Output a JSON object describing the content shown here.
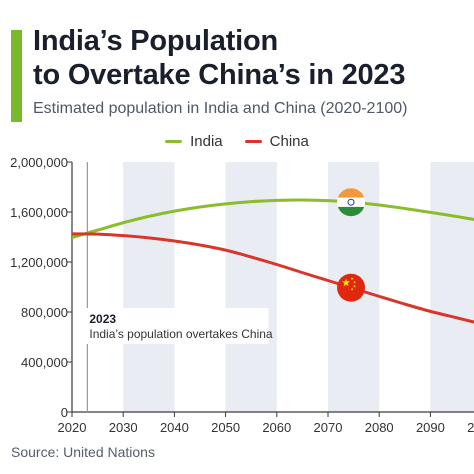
{
  "header": {
    "title_line1": "India’s Population",
    "title_line2": "to Overtake China’s in 2023",
    "subtitle": "Estimated population in India and China (2020-2100)"
  },
  "source": "Source: United Nations",
  "colors": {
    "accent": "#7ab929",
    "india": "#8bbd2b",
    "china": "#d8362a",
    "band": "#e9ecf2",
    "axis": "#3a3a3a",
    "marker": "#8e9aad"
  },
  "chart_data": {
    "type": "line",
    "x_unit": "year",
    "y_unit": "thousands",
    "xlim": [
      2020,
      2100
    ],
    "ylim": [
      0,
      2000000
    ],
    "x_ticks": [
      2020,
      2030,
      2040,
      2050,
      2060,
      2070,
      2080,
      2090
    ],
    "x_tick_labels": [
      "2020",
      "2030",
      "2040",
      "2050",
      "2060",
      "2070",
      "2080",
      "2090"
    ],
    "y_ticks": [
      0,
      400000,
      800000,
      1200000,
      1600000,
      2000000
    ],
    "y_tick_labels": [
      "0",
      "400,000",
      "800,000",
      "1,200,000",
      "1,600,000",
      "2,000,000"
    ],
    "legend_position": "top-center",
    "grid": false,
    "series": [
      {
        "name": "India",
        "color": "#8bbd2b",
        "icon": "india-flag-icon",
        "x": [
          2020,
          2025,
          2030,
          2035,
          2040,
          2045,
          2050,
          2055,
          2060,
          2065,
          2070,
          2075,
          2080,
          2085,
          2090,
          2095,
          2100
        ],
        "y": [
          1396000,
          1455000,
          1514000,
          1565000,
          1607000,
          1640000,
          1665000,
          1683000,
          1693000,
          1696000,
          1691000,
          1677000,
          1656000,
          1628000,
          1597000,
          1565000,
          1530000
        ]
      },
      {
        "name": "China",
        "color": "#d8362a",
        "icon": "china-flag-icon",
        "x": [
          2020,
          2025,
          2030,
          2035,
          2040,
          2045,
          2050,
          2055,
          2060,
          2065,
          2070,
          2075,
          2080,
          2085,
          2090,
          2095,
          2100
        ],
        "y": [
          1425000,
          1423000,
          1411000,
          1393000,
          1368000,
          1336000,
          1295000,
          1240000,
          1180000,
          1115000,
          1052000,
          988000,
          925000,
          863000,
          805000,
          755000,
          705000
        ]
      }
    ],
    "annotation": {
      "x": 2023,
      "year_label": "2023",
      "text": "India’s population overtakes China"
    }
  }
}
